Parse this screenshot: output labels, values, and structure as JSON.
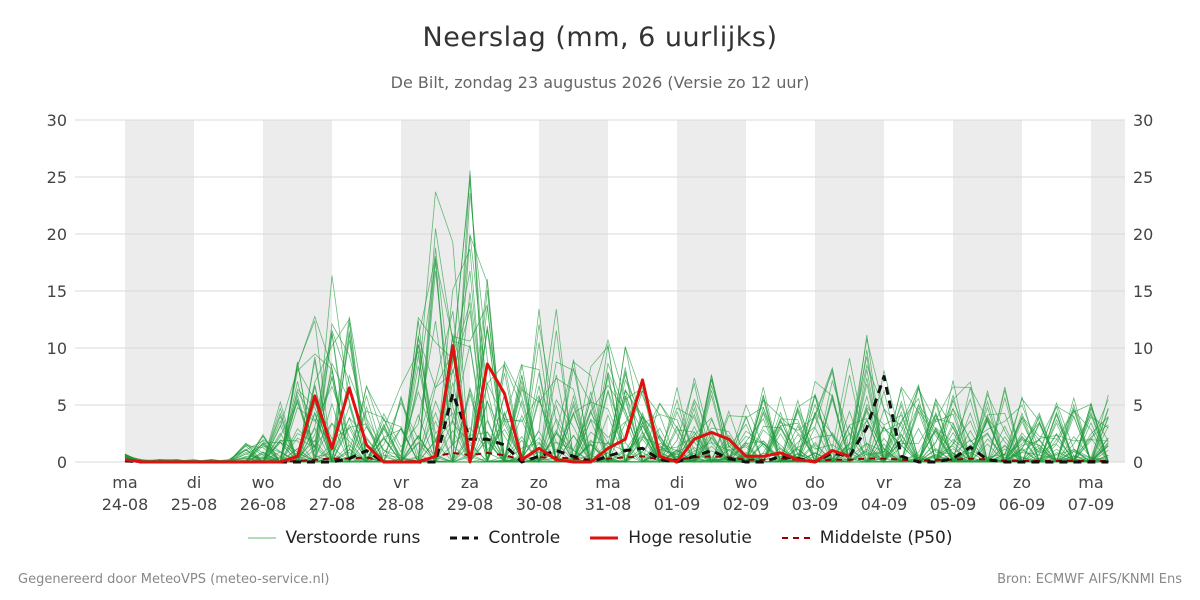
{
  "chart_data": {
    "type": "line",
    "title": "Neerslag (mm, 6 uurlijks)",
    "subtitle": "De Bilt, zondag 23 augustus 2026 (Versie zo 12 uur)",
    "ylim": [
      0,
      30
    ],
    "yticks": [
      0,
      5,
      10,
      15,
      20,
      25,
      30
    ],
    "grid": true,
    "legend_position": "bottom",
    "day_labels": [
      {
        "weekday": "ma",
        "date": "24-08"
      },
      {
        "weekday": "di",
        "date": "25-08"
      },
      {
        "weekday": "wo",
        "date": "26-08"
      },
      {
        "weekday": "do",
        "date": "27-08"
      },
      {
        "weekday": "vr",
        "date": "28-08"
      },
      {
        "weekday": "za",
        "date": "29-08"
      },
      {
        "weekday": "zo",
        "date": "30-08"
      },
      {
        "weekday": "ma",
        "date": "31-08"
      },
      {
        "weekday": "di",
        "date": "01-09"
      },
      {
        "weekday": "wo",
        "date": "02-09"
      },
      {
        "weekday": "do",
        "date": "03-09"
      },
      {
        "weekday": "vr",
        "date": "04-09"
      },
      {
        "weekday": "za",
        "date": "05-09"
      },
      {
        "weekday": "zo",
        "date": "06-09"
      },
      {
        "weekday": "ma",
        "date": "07-09"
      }
    ],
    "time_step_hours": 6,
    "series": [
      {
        "name": "Hoge resolutie",
        "color": "#e01010",
        "style": "solid",
        "values": [
          0.2,
          0,
          0,
          0,
          0,
          0,
          0,
          0,
          0,
          0,
          0.5,
          5.8,
          1.2,
          6.5,
          1.5,
          0,
          0,
          0,
          0.5,
          10.2,
          0,
          8.6,
          6,
          0.2,
          1.2,
          0.2,
          0,
          0,
          1.2,
          2,
          7.2,
          0.5,
          0,
          2,
          2.6,
          2,
          0.5,
          0.5,
          0.8,
          0.2,
          0,
          1,
          0.5
        ]
      },
      {
        "name": "Controle",
        "color": "#111111",
        "style": "dashed",
        "values": [
          0.1,
          0,
          0,
          0,
          0,
          0,
          0,
          0,
          0,
          0,
          0,
          0,
          0,
          0.3,
          1,
          0,
          0,
          0,
          0,
          6,
          2,
          2,
          1.5,
          0,
          0.5,
          1,
          0.5,
          0,
          0.5,
          1,
          1.2,
          0.2,
          0,
          0.5,
          1,
          0.3,
          0,
          0,
          0.5,
          0.3,
          0,
          0.8,
          0.5,
          3,
          7.5,
          0.5,
          0,
          0,
          0.3,
          1.3,
          0.2,
          0,
          0,
          0,
          0,
          0,
          0,
          0,
          0,
          0,
          0.3,
          0.2,
          0.1,
          0.2
        ]
      },
      {
        "name": "Middelste (P50)",
        "color": "#990000",
        "style": "dashed",
        "values": [
          0.1,
          0,
          0,
          0,
          0,
          0,
          0,
          0,
          0,
          0,
          0.1,
          0.2,
          0.3,
          0.3,
          0.4,
          0.1,
          0,
          0.1,
          0.5,
          0.8,
          0.6,
          0.8,
          0.6,
          0.2,
          0.4,
          0.4,
          0.3,
          0.2,
          0.3,
          0.4,
          0.5,
          0.2,
          0.2,
          0.4,
          0.5,
          0.4,
          0.2,
          0.2,
          0.3,
          0.2,
          0.1,
          0.2,
          0.2,
          0.3,
          0.3,
          0.2,
          0.1,
          0.2,
          0.2,
          0.3,
          0.2,
          0.1,
          0.1,
          0.1,
          0.1,
          0.1,
          0.1,
          0.1,
          0.1,
          0.1,
          0.2,
          0.2,
          0.1,
          0.2
        ]
      },
      {
        "name": "Verstoorde runs",
        "color": "#1f9a3a",
        "style": "thin",
        "values": []
      }
    ]
  },
  "footer": {
    "left": "Gegenereerd door MeteoVPS (meteo-service.nl)",
    "right": "Bron: ECMWF AIFS/KNMI Ens"
  }
}
